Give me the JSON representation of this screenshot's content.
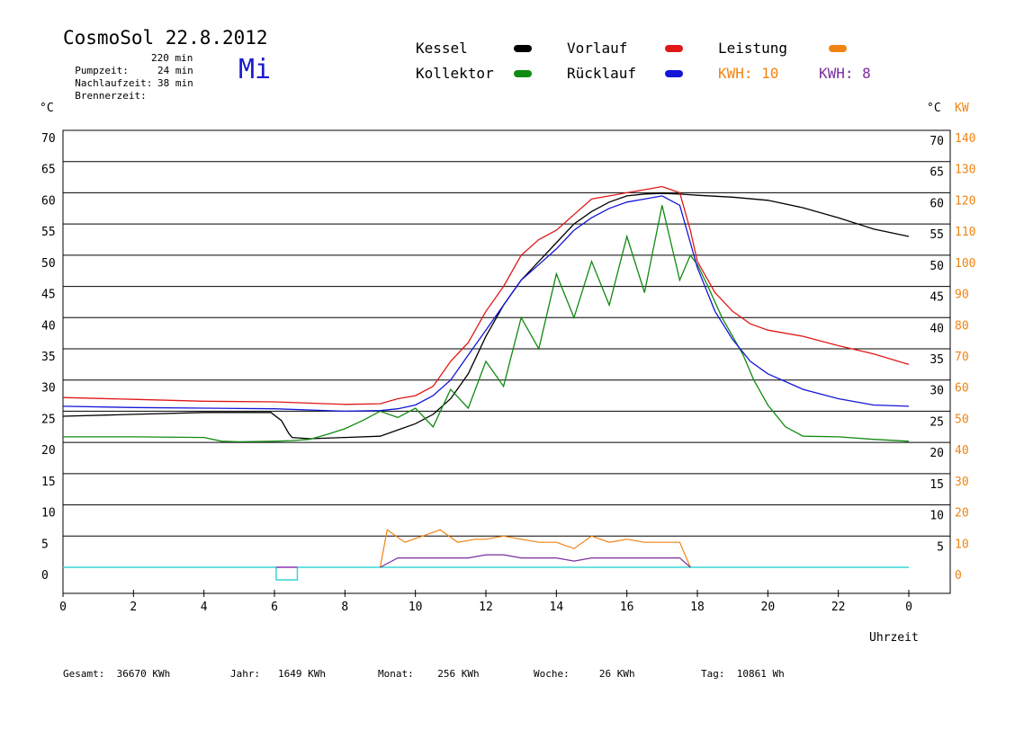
{
  "header": {
    "title": "CosmoSol 22.8.2012",
    "weekday": "Mi",
    "info_rows": [
      {
        "label": "Pumpzeit:",
        "value": "220 min"
      },
      {
        "label": "Nachlaufzeit:",
        "value": "24 min"
      },
      {
        "label": "Brennerzeit:",
        "value": "38 min"
      }
    ]
  },
  "legend": {
    "kessel": {
      "label": "Kessel",
      "color": "#000000"
    },
    "kollektor": {
      "label": "Kollektor",
      "color": "#118a11"
    },
    "vorlauf": {
      "label": "Vorlauf",
      "color": "#e01818"
    },
    "ruecklauf": {
      "label": "Rücklauf",
      "color": "#1515d8"
    },
    "leistung": {
      "label": "Leistung",
      "color": "#ef8412"
    },
    "kwh1": {
      "label": "KWH: 10",
      "color": "#ef8412"
    },
    "kwh2": {
      "label": "KWH: 8",
      "color": "#7a2e9e"
    }
  },
  "footer": {
    "gesamt": "Gesamt:  36670 KWh",
    "jahr": "Jahr:   1649 KWh",
    "monat": "Monat:    256 KWh",
    "woche": "Woche:     26 KWh",
    "tag": "Tag:  10861 Wh"
  },
  "chart_data": {
    "type": "line",
    "title": "CosmoSol 22.8.2012",
    "xlabel": "Uhrzeit",
    "ylabel_left": "°C",
    "ylabel_right_temp": "°C",
    "ylabel_right_power": "KW",
    "xlim": [
      0,
      24
    ],
    "ylim": [
      0,
      70
    ],
    "x_ticks": [
      "0",
      "2",
      "4",
      "6",
      "8",
      "10",
      "12",
      "14",
      "16",
      "18",
      "20",
      "22",
      "0"
    ],
    "y_ticks_left": [
      70,
      65,
      60,
      55,
      50,
      45,
      40,
      35,
      30,
      25,
      20,
      15,
      10,
      5,
      0
    ],
    "y_ticks_right_temp": [
      70,
      65,
      60,
      55,
      50,
      45,
      40,
      35,
      30,
      25,
      20,
      15,
      10,
      5
    ],
    "y_ticks_right_power": [
      140,
      130,
      120,
      110,
      100,
      90,
      80,
      70,
      60,
      50,
      40,
      30,
      20,
      10,
      0
    ],
    "grid": "horizontal",
    "series": [
      {
        "name": "Kessel",
        "color": "#000000",
        "points": [
          [
            0,
            24.2
          ],
          [
            2,
            24.5
          ],
          [
            4,
            24.8
          ],
          [
            5.9,
            24.8
          ],
          [
            6.2,
            23.5
          ],
          [
            6.4,
            21.5
          ],
          [
            6.5,
            20.8
          ],
          [
            7,
            20.6
          ],
          [
            8,
            20.8
          ],
          [
            9,
            21
          ],
          [
            9.5,
            22
          ],
          [
            10,
            23
          ],
          [
            10.5,
            24.5
          ],
          [
            11,
            27
          ],
          [
            11.5,
            31
          ],
          [
            12,
            37
          ],
          [
            12.5,
            42
          ],
          [
            13,
            46
          ],
          [
            13.5,
            49
          ],
          [
            14,
            52
          ],
          [
            14.5,
            55
          ],
          [
            15,
            57
          ],
          [
            15.5,
            58.5
          ],
          [
            16,
            59.5
          ],
          [
            16.5,
            59.8
          ],
          [
            17,
            59.9
          ],
          [
            17.5,
            59.8
          ],
          [
            18,
            59.6
          ],
          [
            19,
            59.3
          ],
          [
            20,
            58.8
          ],
          [
            21,
            57.6
          ],
          [
            22,
            56
          ],
          [
            23,
            54.2
          ],
          [
            24,
            53
          ]
        ]
      },
      {
        "name": "Kollektor",
        "color": "#118a11",
        "points": [
          [
            0,
            20.9
          ],
          [
            2,
            20.9
          ],
          [
            4,
            20.8
          ],
          [
            4.5,
            20.2
          ],
          [
            5,
            20.1
          ],
          [
            6,
            20.2
          ],
          [
            6.5,
            20.3
          ],
          [
            7,
            20.5
          ],
          [
            7.5,
            21.3
          ],
          [
            8,
            22.2
          ],
          [
            8.5,
            23.5
          ],
          [
            9,
            25
          ],
          [
            9.5,
            24
          ],
          [
            10,
            25.5
          ],
          [
            10.5,
            22.5
          ],
          [
            11,
            28.5
          ],
          [
            11.5,
            25.5
          ],
          [
            12,
            33
          ],
          [
            12.5,
            29
          ],
          [
            13,
            40
          ],
          [
            13.5,
            35
          ],
          [
            14,
            47
          ],
          [
            14.5,
            40
          ],
          [
            15,
            49
          ],
          [
            15.5,
            42
          ],
          [
            16,
            53
          ],
          [
            16.5,
            44
          ],
          [
            17,
            58
          ],
          [
            17.5,
            46
          ],
          [
            17.8,
            50
          ],
          [
            18,
            48.5
          ],
          [
            18.3,
            45
          ],
          [
            18.7,
            40
          ],
          [
            19,
            37
          ],
          [
            19.3,
            34
          ],
          [
            19.6,
            30
          ],
          [
            20,
            26
          ],
          [
            20.5,
            22.5
          ],
          [
            21,
            21
          ],
          [
            22,
            20.9
          ],
          [
            23,
            20.5
          ],
          [
            24,
            20.2
          ]
        ]
      },
      {
        "name": "Vorlauf",
        "color": "#e01818",
        "points": [
          [
            0,
            27.2
          ],
          [
            2,
            26.9
          ],
          [
            4,
            26.6
          ],
          [
            6,
            26.5
          ],
          [
            8,
            26.1
          ],
          [
            9,
            26.2
          ],
          [
            9.5,
            27
          ],
          [
            10,
            27.5
          ],
          [
            10.5,
            29
          ],
          [
            11,
            33
          ],
          [
            11.5,
            36
          ],
          [
            12,
            41
          ],
          [
            12.5,
            45
          ],
          [
            13,
            50
          ],
          [
            13.5,
            52.5
          ],
          [
            14,
            54
          ],
          [
            14.5,
            56.5
          ],
          [
            15,
            59
          ],
          [
            15.5,
            59.5
          ],
          [
            16,
            60
          ],
          [
            16.5,
            60.5
          ],
          [
            17,
            61
          ],
          [
            17.5,
            60
          ],
          [
            17.8,
            54
          ],
          [
            18,
            49
          ],
          [
            18.5,
            44
          ],
          [
            19,
            41
          ],
          [
            19.5,
            39
          ],
          [
            20,
            38
          ],
          [
            21,
            37
          ],
          [
            22,
            35.5
          ],
          [
            23,
            34.2
          ],
          [
            24,
            32.5
          ]
        ]
      },
      {
        "name": "Rücklauf",
        "color": "#1515d8",
        "points": [
          [
            0,
            25.8
          ],
          [
            2,
            25.6
          ],
          [
            4,
            25.5
          ],
          [
            6,
            25.4
          ],
          [
            8,
            25
          ],
          [
            9,
            25.1
          ],
          [
            9.5,
            25.4
          ],
          [
            10,
            26
          ],
          [
            10.5,
            27.5
          ],
          [
            11,
            30
          ],
          [
            11.5,
            34
          ],
          [
            12,
            38
          ],
          [
            12.5,
            42
          ],
          [
            13,
            46
          ],
          [
            13.5,
            48.5
          ],
          [
            14,
            51
          ],
          [
            14.5,
            54
          ],
          [
            15,
            56
          ],
          [
            15.5,
            57.5
          ],
          [
            16,
            58.5
          ],
          [
            16.5,
            59
          ],
          [
            17,
            59.5
          ],
          [
            17.5,
            58
          ],
          [
            17.8,
            52
          ],
          [
            18,
            48
          ],
          [
            18.5,
            41
          ],
          [
            19,
            36.5
          ],
          [
            19.5,
            33
          ],
          [
            20,
            31
          ],
          [
            21,
            28.5
          ],
          [
            22,
            27
          ],
          [
            23,
            26
          ],
          [
            24,
            25.8
          ]
        ]
      }
    ],
    "power_series": [
      {
        "name": "Leistung",
        "color": "#ef8412",
        "points": [
          [
            9,
            0
          ],
          [
            9.2,
            12
          ],
          [
            9.7,
            8
          ],
          [
            10.2,
            10
          ],
          [
            10.7,
            12
          ],
          [
            11.2,
            8
          ],
          [
            11.7,
            9
          ],
          [
            12,
            9
          ],
          [
            12.5,
            10
          ],
          [
            13,
            9
          ],
          [
            13.5,
            8
          ],
          [
            14,
            8
          ],
          [
            14.5,
            6
          ],
          [
            15,
            10
          ],
          [
            15.5,
            8
          ],
          [
            16,
            9
          ],
          [
            16.5,
            8
          ],
          [
            17,
            8
          ],
          [
            17.5,
            8
          ],
          [
            17.8,
            0
          ]
        ]
      },
      {
        "name": "KWH: 8",
        "color": "#7a2e9e",
        "points": [
          [
            9,
            0
          ],
          [
            9.5,
            3
          ],
          [
            10,
            3
          ],
          [
            10.5,
            3
          ],
          [
            11,
            3
          ],
          [
            11.5,
            3
          ],
          [
            12,
            4
          ],
          [
            12.5,
            4
          ],
          [
            13,
            3
          ],
          [
            13.5,
            3
          ],
          [
            14,
            3
          ],
          [
            14.5,
            2
          ],
          [
            15,
            3
          ],
          [
            15.5,
            3
          ],
          [
            16,
            3
          ],
          [
            16.5,
            3
          ],
          [
            17,
            3
          ],
          [
            17.5,
            3
          ],
          [
            17.8,
            0
          ]
        ]
      }
    ],
    "baseline": {
      "name": "Brenner",
      "color": "#3ad6d6",
      "value": 0,
      "marker_x": [
        6.05,
        6.65
      ]
    }
  }
}
